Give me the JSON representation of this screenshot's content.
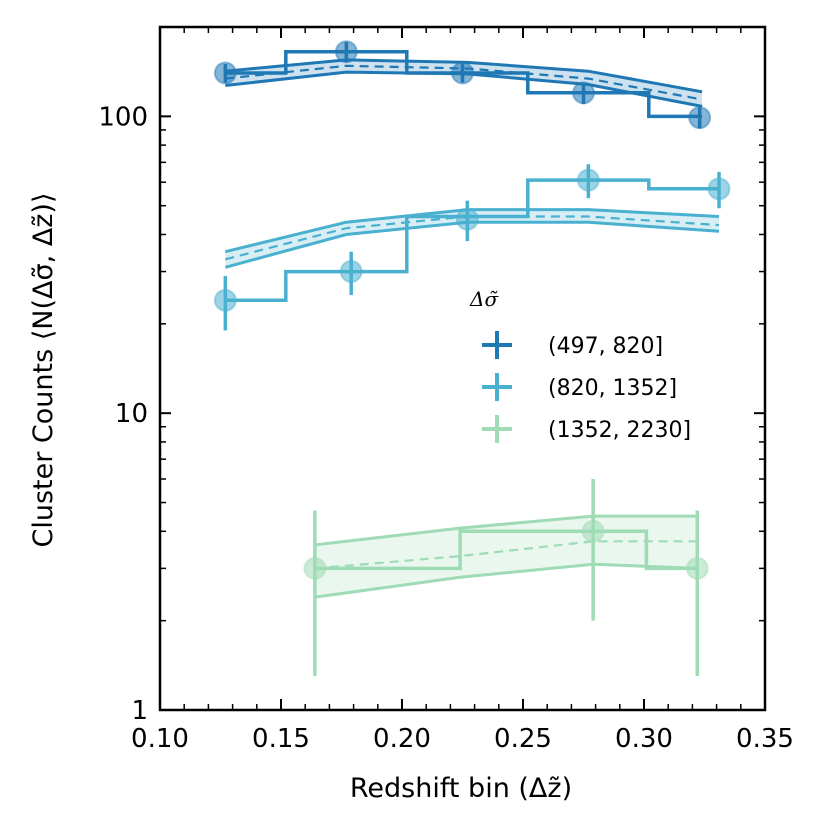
{
  "chart_data": {
    "type": "step-line",
    "xlabel": "Redshift bin (Δz̃)",
    "ylabel": "Cluster Counts ⟨N(Δσ̃, Δz̃)⟩",
    "xlim": [
      0.1,
      0.35
    ],
    "ylim": [
      1,
      200
    ],
    "yscale": "log",
    "x_ticks": [
      "0.10",
      "0.15",
      "0.20",
      "0.25",
      "0.30",
      "0.35"
    ],
    "x_tick_values": [
      0.1,
      0.15,
      0.2,
      0.25,
      0.3,
      0.35
    ],
    "y_ticks": [
      "1",
      "10",
      "100"
    ],
    "y_tick_values": [
      1,
      10,
      100
    ],
    "legend": {
      "title": "Δσ̃",
      "entries": [
        "(497, 820]",
        "(820, 1352]",
        "(1352, 2230]"
      ]
    },
    "series": [
      {
        "name": "(497, 820]",
        "color": "#1f78b4",
        "bin_edges": [
          0.127,
          0.152,
          0.202,
          0.252,
          0.302,
          0.324
        ],
        "step_values": [
          140,
          165,
          140,
          120,
          100
        ],
        "points": [
          {
            "x": 0.127,
            "y": 140,
            "err": 10
          },
          {
            "x": 0.177,
            "y": 165,
            "err": 13
          },
          {
            "x": 0.225,
            "y": 140,
            "err": 10
          },
          {
            "x": 0.275,
            "y": 120,
            "err": 10
          },
          {
            "x": 0.323,
            "y": 99,
            "err": 8
          }
        ],
        "model_x": [
          0.127,
          0.177,
          0.227,
          0.277,
          0.324
        ],
        "model_mid": [
          134,
          148,
          145,
          134,
          114
        ],
        "model_low": [
          127,
          141,
          139,
          128,
          108
        ],
        "model_high": [
          142,
          155,
          152,
          142,
          121
        ]
      },
      {
        "name": "(820, 1352]",
        "color": "#4ab0d0",
        "bin_edges": [
          0.127,
          0.152,
          0.202,
          0.252,
          0.302,
          0.331
        ],
        "step_values": [
          24,
          30,
          46,
          61,
          57
        ],
        "points": [
          {
            "x": 0.127,
            "y": 24,
            "err": 5
          },
          {
            "x": 0.179,
            "y": 30,
            "err": 5
          },
          {
            "x": 0.227,
            "y": 45,
            "err": 7
          },
          {
            "x": 0.277,
            "y": 61,
            "err": 8
          },
          {
            "x": 0.331,
            "y": 57,
            "err": 8
          }
        ],
        "model_x": [
          0.127,
          0.177,
          0.227,
          0.277,
          0.331
        ],
        "model_mid": [
          33,
          42,
          46,
          46,
          43
        ],
        "model_low": [
          31,
          40,
          44,
          44,
          41
        ],
        "model_high": [
          35,
          44,
          48.5,
          48.5,
          46
        ]
      },
      {
        "name": "(1352, 2230]",
        "color": "#9fdbb5",
        "bin_edges": [
          0.164,
          0.224,
          0.301,
          0.322
        ],
        "step_values": [
          3,
          4,
          3
        ],
        "points": [
          {
            "x": 0.164,
            "y": 3,
            "err_low": 1.7,
            "err_high": 1.7
          },
          {
            "x": 0.279,
            "y": 4,
            "err_low": 2,
            "err_high": 2
          },
          {
            "x": 0.322,
            "y": 3,
            "err_low": 1.7,
            "err_high": 1.7
          }
        ],
        "model_x": [
          0.164,
          0.224,
          0.279,
          0.322
        ],
        "model_mid": [
          3.0,
          3.3,
          3.7,
          3.7
        ],
        "model_low": [
          2.4,
          2.8,
          3.1,
          3.0
        ],
        "model_high": [
          3.6,
          4.1,
          4.5,
          4.5
        ]
      }
    ]
  }
}
